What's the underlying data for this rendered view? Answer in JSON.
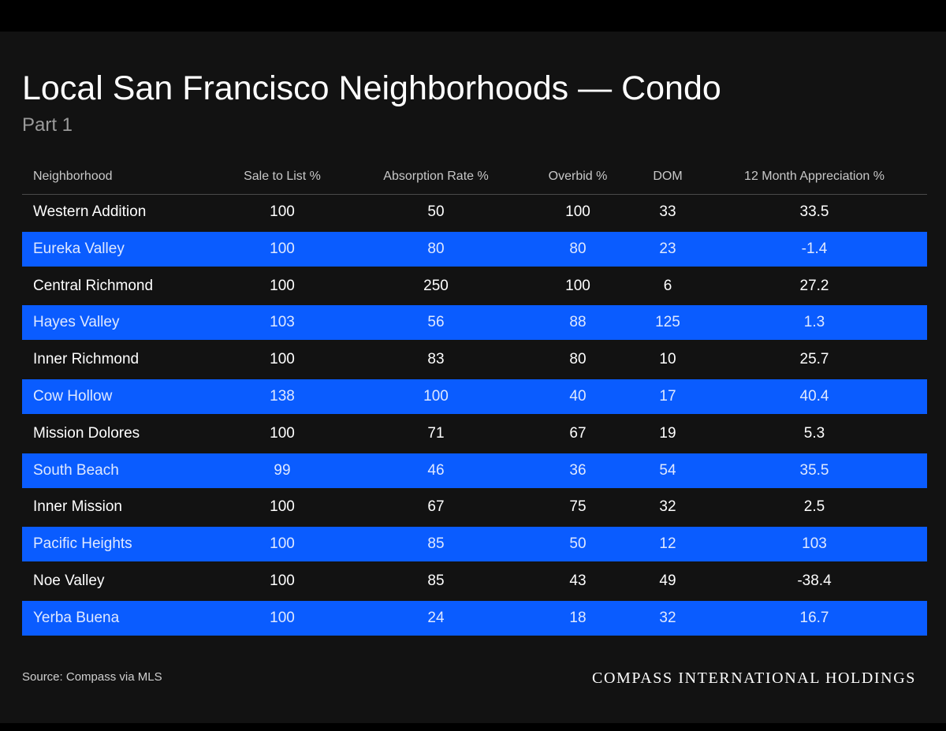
{
  "colors": {
    "page_background": "#000000",
    "panel_background": "#121212",
    "accent_row": "#0a5cff",
    "text": "#ffffff",
    "muted_text": "#9a9a9a"
  },
  "chart_data": {
    "type": "table",
    "title": "Local San Francisco Neighborhoods — Condo",
    "subtitle": "Part 1",
    "columns": [
      "Neighborhood",
      "Sale to List %",
      "Absorption Rate %",
      "Overbid %",
      "DOM",
      "12 Month Appreciation %"
    ],
    "rows": [
      [
        "Western Addition",
        "100",
        "50",
        "100",
        "33",
        "33.5"
      ],
      [
        "Eureka Valley",
        "100",
        "80",
        "80",
        "23",
        "-1.4"
      ],
      [
        "Central Richmond",
        "100",
        "250",
        "100",
        "6",
        "27.2"
      ],
      [
        "Hayes Valley",
        "103",
        "56",
        "88",
        "125",
        "1.3"
      ],
      [
        "Inner Richmond",
        "100",
        "83",
        "80",
        "10",
        "25.7"
      ],
      [
        "Cow Hollow",
        "138",
        "100",
        "40",
        "17",
        "40.4"
      ],
      [
        "Mission Dolores",
        "100",
        "71",
        "67",
        "19",
        "5.3"
      ],
      [
        "South Beach",
        "99",
        "46",
        "36",
        "54",
        "35.5"
      ],
      [
        "Inner Mission",
        "100",
        "67",
        "75",
        "32",
        "2.5"
      ],
      [
        "Pacific Heights",
        "100",
        "85",
        "50",
        "12",
        "103"
      ],
      [
        "Noe Valley",
        "100",
        "85",
        "43",
        "49",
        "-38.4"
      ],
      [
        "Yerba Buena",
        "100",
        "24",
        "18",
        "32",
        "16.7"
      ]
    ],
    "source": "Source: Compass via MLS"
  },
  "brand": "COMPASS INTERNATIONAL HOLDINGS"
}
